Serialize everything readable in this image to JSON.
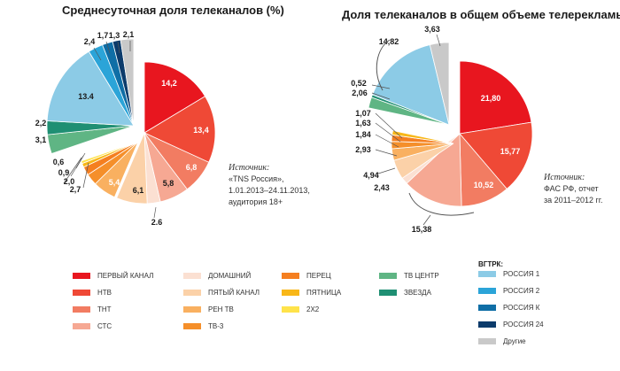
{
  "colors": {
    "perviy": "#e8161f",
    "ntv": "#ef4936",
    "tnt": "#f27c62",
    "sts": "#f6a893",
    "domashniy": "#fbe0d2",
    "pyatiy": "#fbd1a8",
    "ren": "#f9b060",
    "tv3": "#f58f2a",
    "perec": "#f57f20",
    "pyatnica": "#f8b718",
    "twox2": "#ffe34a",
    "tvcentr": "#5fb584",
    "zvezda": "#1f8f73",
    "rossiya1": "#8ccbe6",
    "rossiya2": "#2ba4d8",
    "rossiyak": "#0f6ea6",
    "rossiya24": "#0c3b6b",
    "drugie": "#c9c9c9"
  },
  "chart_data": [
    {
      "type": "pie",
      "title": "Среднесуточная доля телеканалов (%)",
      "source": {
        "label": "Источник:",
        "lines": [
          "«TNS Россия»,",
          "1.01.2013–24.11.2013,",
          "аудитория 18+"
        ]
      },
      "slices": [
        {
          "key": "perviy",
          "value": 14.2,
          "label": "14,2"
        },
        {
          "key": "ntv",
          "value": 13.4,
          "label": "13,4"
        },
        {
          "key": "tnt",
          "value": 6.8,
          "label": "6,8"
        },
        {
          "key": "sts",
          "value": 5.8,
          "label": "5,8"
        },
        {
          "key": "domashniy",
          "value": 2.6,
          "label": "2.6"
        },
        {
          "key": "pyatiy",
          "value": 6.1,
          "label": "6,1"
        },
        {
          "key": "ren",
          "value": 5.4,
          "label": "5,4"
        },
        {
          "key": "tv3",
          "value": 2.7,
          "label": "2,7"
        },
        {
          "key": "perec",
          "value": 2.0,
          "label": "2,0"
        },
        {
          "key": "pyatnica",
          "value": 0.9,
          "label": "0,9"
        },
        {
          "key": "twox2",
          "value": 0.6,
          "label": "0,6"
        },
        {
          "key": "tvcentr",
          "value": 3.1,
          "label": "3,1"
        },
        {
          "key": "zvezda",
          "value": 2.2,
          "label": "2,2"
        },
        {
          "key": "rossiya1",
          "value": 13.4,
          "label": "13.4"
        },
        {
          "key": "rossiya2",
          "value": 2.4,
          "label": "2,4"
        },
        {
          "key": "rossiyak",
          "value": 1.7,
          "label": "1,7"
        },
        {
          "key": "rossiya24",
          "value": 1.3,
          "label": "1,3"
        },
        {
          "key": "drugie",
          "value": 2.1,
          "label": "2,1"
        }
      ],
      "group_labels": []
    },
    {
      "type": "pie",
      "title": "Доля телеканалов в общем объеме телерекламы (%)",
      "source": {
        "label": "Источник:",
        "lines": [
          "ФАС РФ, отчет",
          "за 2011–2012 гг."
        ]
      },
      "slices": [
        {
          "key": "perviy",
          "value": 21.8,
          "label": "21,80"
        },
        {
          "key": "ntv",
          "value": 15.77,
          "label": "15,77"
        },
        {
          "key": "tnt",
          "value": 10.52,
          "label": "10,52"
        },
        {
          "key": "sts",
          "value": 13.0,
          "label": ""
        },
        {
          "key": "domashniy",
          "value": 2.43,
          "label": "2,43"
        },
        {
          "key": "pyatiy",
          "value": 4.94,
          "label": "4,94"
        },
        {
          "key": "ren",
          "value": 2.93,
          "label": "2,93"
        },
        {
          "key": "tv3",
          "value": 1.84,
          "label": "1,84"
        },
        {
          "key": "perec",
          "value": 1.63,
          "label": "1,63"
        },
        {
          "key": "pyatnica",
          "value": 1.07,
          "label": "1,07"
        },
        {
          "key": "tvcentr",
          "value": 2.06,
          "label": "2,06"
        },
        {
          "key": "zvezda",
          "value": 0.52,
          "label": "0,52"
        },
        {
          "key": "rossiya1",
          "value": 14.82,
          "label": "14,82"
        },
        {
          "key": "drugie",
          "value": 3.63,
          "label": "3,63"
        }
      ],
      "group_labels": [
        {
          "text": "15,38"
        }
      ]
    }
  ],
  "legend": {
    "columns": [
      {
        "items": [
          {
            "key": "perviy",
            "label": "ПЕРВЫЙ КАНАЛ"
          },
          {
            "key": "ntv",
            "label": "НТВ"
          },
          {
            "key": "tnt",
            "label": "ТНТ"
          },
          {
            "key": "sts",
            "label": "СТС"
          }
        ]
      },
      {
        "items": [
          {
            "key": "domashniy",
            "label": "ДОМАШНИЙ"
          },
          {
            "key": "pyatiy",
            "label": "ПЯТЫЙ КАНАЛ"
          },
          {
            "key": "ren",
            "label": "РЕН ТВ"
          },
          {
            "key": "tv3",
            "label": "ТВ-3"
          }
        ]
      },
      {
        "items": [
          {
            "key": "perec",
            "label": "ПЕРЕЦ"
          },
          {
            "key": "pyatnica",
            "label": "ПЯТНИЦА"
          },
          {
            "key": "twox2",
            "label": "2Х2"
          }
        ]
      },
      {
        "items": [
          {
            "key": "tvcentr",
            "label": "ТВ ЦЕНТР"
          },
          {
            "key": "zvezda",
            "label": "ЗВЕЗДА"
          }
        ]
      },
      {
        "header": "ВГТРК:",
        "items": [
          {
            "key": "rossiya1",
            "label": "РОССИЯ 1"
          },
          {
            "key": "rossiya2",
            "label": "РОССИЯ 2"
          },
          {
            "key": "rossiyak",
            "label": "РОССИЯ К"
          },
          {
            "key": "rossiya24",
            "label": "РОССИЯ 24"
          },
          {
            "key": "drugie",
            "label": "Другие"
          }
        ]
      }
    ]
  }
}
